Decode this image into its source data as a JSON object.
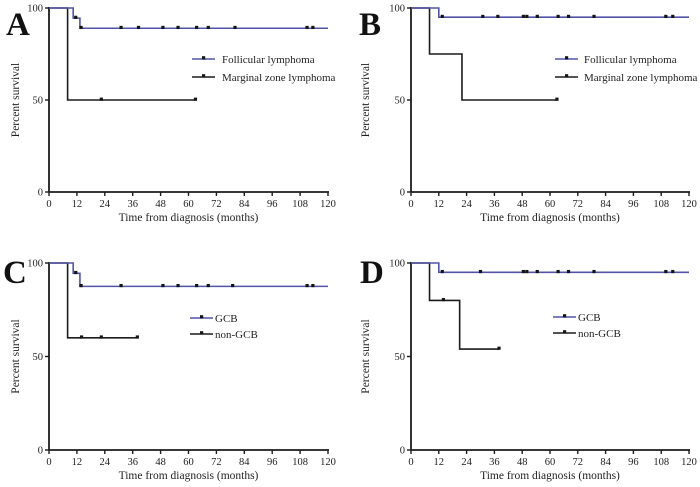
{
  "figure": {
    "background": "#ffffff",
    "text_color": "#1f1f1f",
    "axis_color": "#1c1c1c",
    "accent_blue": "#5254a8",
    "series_black": "#1c1c1c",
    "censor_mark_color": "#141414"
  },
  "chart_data": [
    {
      "type": "line",
      "step": true,
      "panel_label": "A",
      "xlabel": "Time from diagnosis (months)",
      "ylabel": "Percent survival",
      "xlim": [
        0,
        120
      ],
      "ylim": [
        0,
        100
      ],
      "x_ticks": [
        0,
        12,
        24,
        36,
        48,
        60,
        72,
        84,
        96,
        108,
        120
      ],
      "y_ticks": [
        0,
        50,
        100
      ],
      "grid": false,
      "legend_position": "center-right",
      "series": [
        {
          "name": "Follicular lymphoma",
          "color": "#5254a8",
          "points": [
            [
              0,
              100
            ],
            [
              10.4,
              100
            ],
            [
              10.4,
              94.5
            ],
            [
              13.3,
              94.5
            ],
            [
              13.3,
              89
            ],
            [
              120,
              89
            ]
          ],
          "censor_marks": [
            [
              11.5,
              94.5
            ],
            [
              13.8,
              89
            ],
            [
              31,
              89
            ],
            [
              38.5,
              89
            ],
            [
              49,
              89
            ],
            [
              55.5,
              89
            ],
            [
              63.5,
              89
            ],
            [
              68.5,
              89
            ],
            [
              80,
              89
            ],
            [
              111,
              89
            ],
            [
              113.5,
              89
            ]
          ]
        },
        {
          "name": "Marginal zone lymphoma",
          "color": "#1c1c1c",
          "points": [
            [
              0,
              100
            ],
            [
              8,
              100
            ],
            [
              8,
              50
            ],
            [
              63,
              50
            ]
          ],
          "censor_marks": [
            [
              22.5,
              50
            ],
            [
              63,
              50
            ]
          ]
        }
      ]
    },
    {
      "type": "line",
      "step": true,
      "panel_label": "B",
      "xlabel": "Time from diagnosis (months)",
      "ylabel": "Percent survival",
      "xlim": [
        0,
        120
      ],
      "ylim": [
        0,
        100
      ],
      "x_ticks": [
        0,
        12,
        24,
        36,
        48,
        60,
        72,
        84,
        96,
        108,
        120
      ],
      "y_ticks": [
        0,
        50,
        100
      ],
      "grid": false,
      "legend_position": "center-right",
      "series": [
        {
          "name": "Follicular lymphoma",
          "color": "#5254a8",
          "points": [
            [
              0,
              100
            ],
            [
              12,
              100
            ],
            [
              12,
              95
            ],
            [
              120,
              95
            ]
          ],
          "censor_marks": [
            [
              13.5,
              95
            ],
            [
              31,
              95
            ],
            [
              37.5,
              95
            ],
            [
              48.5,
              95
            ],
            [
              50,
              95
            ],
            [
              54.5,
              95
            ],
            [
              63.5,
              95
            ],
            [
              68,
              95
            ],
            [
              79,
              95
            ],
            [
              110,
              95
            ],
            [
              113,
              95
            ]
          ]
        },
        {
          "name": "Marginal zone lymphoma",
          "color": "#1c1c1c",
          "points": [
            [
              0,
              100
            ],
            [
              8,
              100
            ],
            [
              8,
              75
            ],
            [
              22,
              75
            ],
            [
              22,
              50
            ],
            [
              63,
              50
            ]
          ],
          "censor_marks": [
            [
              63,
              50
            ]
          ]
        }
      ]
    },
    {
      "type": "line",
      "step": true,
      "panel_label": "C",
      "xlabel": "Time from diagnosis (months)",
      "ylabel": "Percent survival",
      "xlim": [
        0,
        120
      ],
      "ylim": [
        0,
        100
      ],
      "x_ticks": [
        0,
        12,
        24,
        36,
        48,
        60,
        72,
        84,
        96,
        108,
        120
      ],
      "y_ticks": [
        0,
        50,
        100
      ],
      "grid": false,
      "legend_position": "center-right",
      "series": [
        {
          "name": "GCB",
          "color": "#5254a8",
          "points": [
            [
              0,
              100
            ],
            [
              10.4,
              100
            ],
            [
              10.4,
              94.5
            ],
            [
              13.3,
              94.5
            ],
            [
              13.3,
              87.5
            ],
            [
              120,
              87.5
            ]
          ],
          "censor_marks": [
            [
              11.5,
              94.5
            ],
            [
              13.8,
              87.5
            ],
            [
              31,
              87.5
            ],
            [
              49,
              87.5
            ],
            [
              55.5,
              87.5
            ],
            [
              63.5,
              87.5
            ],
            [
              68.5,
              87.5
            ],
            [
              79,
              87.5
            ],
            [
              111,
              87.5
            ],
            [
              113.5,
              87.5
            ]
          ]
        },
        {
          "name": "non-GCB",
          "color": "#1c1c1c",
          "points": [
            [
              0,
              100
            ],
            [
              8,
              100
            ],
            [
              8,
              60
            ],
            [
              38,
              60
            ]
          ],
          "censor_marks": [
            [
              14,
              60
            ],
            [
              22.5,
              60
            ],
            [
              38,
              60
            ]
          ]
        }
      ]
    },
    {
      "type": "line",
      "step": true,
      "panel_label": "D",
      "xlabel": "Time from diagnosis (months)",
      "ylabel": "Percent survival",
      "xlim": [
        0,
        120
      ],
      "ylim": [
        0,
        100
      ],
      "x_ticks": [
        0,
        12,
        24,
        36,
        48,
        60,
        72,
        84,
        96,
        108,
        120
      ],
      "y_ticks": [
        0,
        50,
        100
      ],
      "grid": false,
      "legend_position": "center-right",
      "series": [
        {
          "name": "GCB",
          "color": "#5254a8",
          "points": [
            [
              0,
              100
            ],
            [
              12,
              100
            ],
            [
              12,
              95
            ],
            [
              120,
              95
            ]
          ],
          "censor_marks": [
            [
              13.5,
              95
            ],
            [
              30,
              95
            ],
            [
              48.5,
              95
            ],
            [
              50,
              95
            ],
            [
              54.5,
              95
            ],
            [
              63.5,
              95
            ],
            [
              68,
              95
            ],
            [
              79,
              95
            ],
            [
              110,
              95
            ],
            [
              113,
              95
            ]
          ]
        },
        {
          "name": "non-GCB",
          "color": "#1c1c1c",
          "points": [
            [
              0,
              100
            ],
            [
              8,
              100
            ],
            [
              8,
              80
            ],
            [
              21,
              80
            ],
            [
              21,
              54
            ],
            [
              38,
              54
            ]
          ],
          "censor_marks": [
            [
              14,
              80
            ],
            [
              38,
              54
            ]
          ]
        }
      ]
    }
  ]
}
